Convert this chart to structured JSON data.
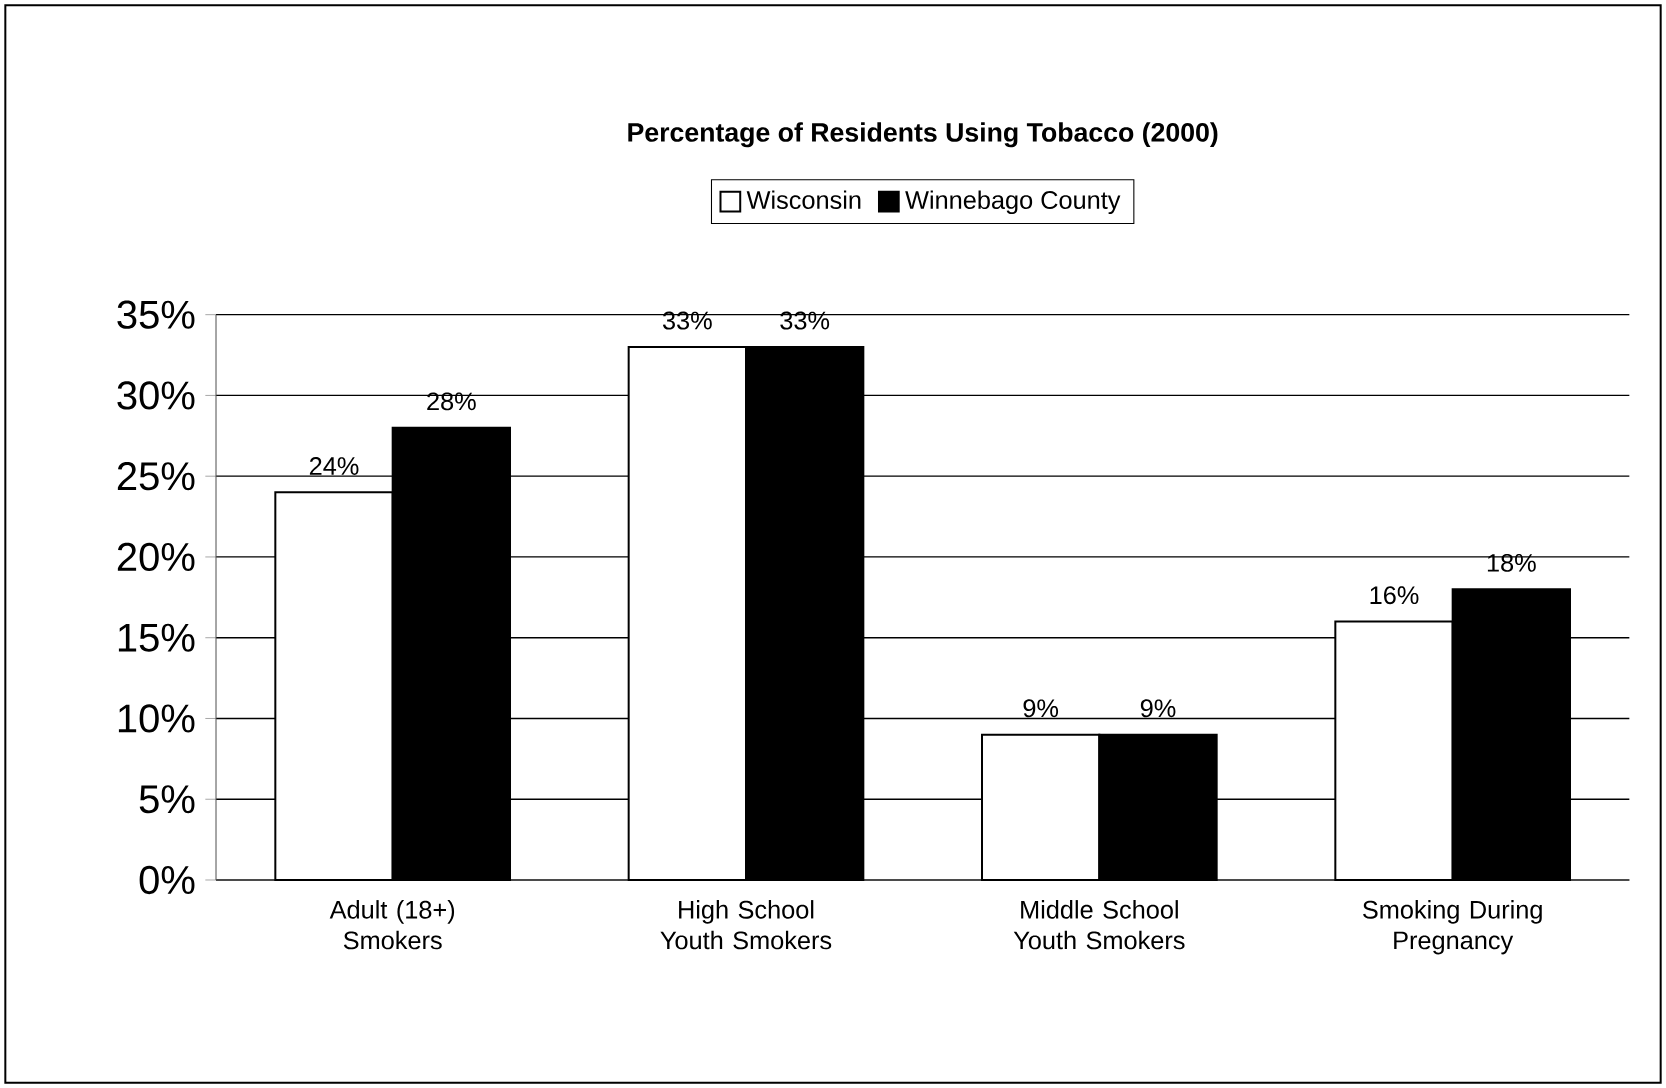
{
  "chart_data": {
    "type": "bar",
    "title": "Percentage of Residents Using Tobacco (2000)",
    "categories": [
      "Adult (18+) Smokers",
      "High School Youth Smokers",
      "Middle School Youth Smokers",
      "Smoking During Pregnancy"
    ],
    "series": [
      {
        "name": "Wisconsin",
        "color": "#ffffff",
        "values": [
          24,
          33,
          9,
          16
        ],
        "value_labels": [
          "24%",
          "33%",
          "9%",
          "16%"
        ]
      },
      {
        "name": "Winnebago County",
        "color": "#000000",
        "values": [
          28,
          33,
          9,
          18
        ],
        "value_labels": [
          "28%",
          "33%",
          "9%",
          "18%"
        ]
      }
    ],
    "ylim": [
      0,
      35
    ],
    "yticks": [
      {
        "value": 0,
        "label": "0%"
      },
      {
        "value": 5,
        "label": "5%"
      },
      {
        "value": 10,
        "label": "10%"
      },
      {
        "value": 15,
        "label": "15%"
      },
      {
        "value": 20,
        "label": "20%"
      },
      {
        "value": 25,
        "label": "25%"
      },
      {
        "value": 30,
        "label": "30%"
      },
      {
        "value": 35,
        "label": "35%"
      }
    ],
    "grid": "y",
    "legend": "top"
  }
}
